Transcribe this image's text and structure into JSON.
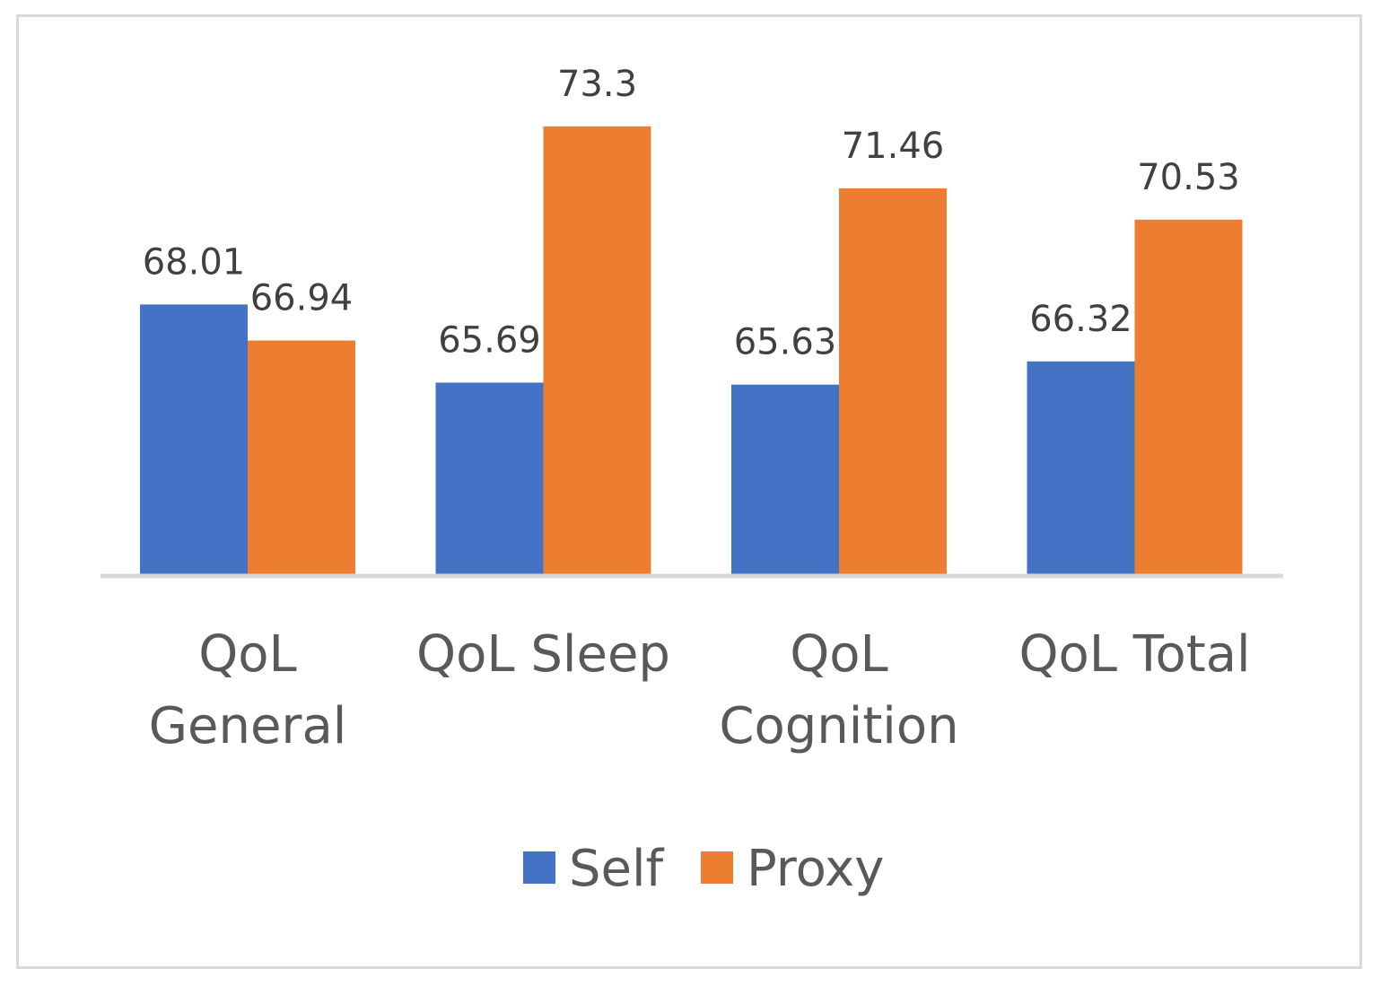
{
  "chart_data": {
    "type": "bar",
    "title": "",
    "xlabel": "",
    "ylabel": "",
    "ylim": [
      60,
      75
    ],
    "grid": false,
    "legend_position": "bottom",
    "categories": [
      [
        "QoL",
        "General"
      ],
      [
        "QoL Sleep"
      ],
      [
        "QoL",
        "Cognition"
      ],
      [
        "QoL Total"
      ]
    ],
    "series": [
      {
        "name": "Self",
        "color": "#4472c4",
        "values": [
          68.01,
          65.69,
          65.63,
          66.32
        ],
        "labels": [
          "68.01",
          "65.69",
          "65.63",
          "66.32"
        ]
      },
      {
        "name": "Proxy",
        "color": "#ed7d31",
        "values": [
          66.94,
          73.3,
          71.46,
          70.53
        ],
        "labels": [
          "66.94",
          "73.3",
          "71.46",
          "70.53"
        ]
      }
    ]
  }
}
